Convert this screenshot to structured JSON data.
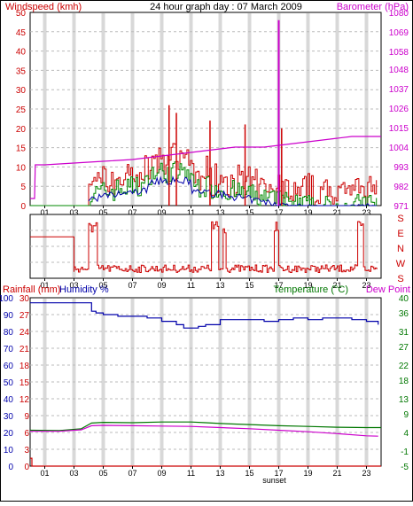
{
  "colors": {
    "windspeed": "#cc0000",
    "gust": "#cc0000",
    "avg": "#0000aa",
    "green": "#008800",
    "barometer": "#cc00cc",
    "humidity": "#0000aa",
    "temperature": "#007700",
    "dewpoint": "#cc00cc",
    "grid_band": "#d8d8d8"
  },
  "chart_data": [
    {
      "type": "line",
      "title": "24 hour graph day : 07 March 2009",
      "left_axis_label": "Windspeed (kmh)",
      "right_axis_label": "Barometer (hPa)",
      "x_ticks": [
        "01",
        "03",
        "05",
        "07",
        "09",
        "11",
        "13",
        "15",
        "17",
        "19",
        "21",
        "23"
      ],
      "annotation": "sunset",
      "left_ticks": [
        0,
        5,
        10,
        15,
        20,
        25,
        30,
        35,
        40,
        45,
        50
      ],
      "right_ticks": [
        971,
        982,
        993,
        1004,
        1015,
        1026,
        1037,
        1048,
        1058,
        1069,
        1080
      ],
      "xlim": [
        0,
        24
      ],
      "ylim_left": [
        0,
        50
      ],
      "ylim_right": [
        971,
        1080
      ],
      "series": [
        {
          "name": "Barometer (hPa)",
          "x": [
            0,
            0.3,
            0.35,
            1,
            3,
            5,
            7,
            9,
            10,
            11,
            12,
            13,
            14,
            15,
            16,
            17,
            18,
            19,
            20,
            21,
            22,
            23,
            24
          ],
          "values": [
            975,
            975,
            994,
            994,
            995,
            996,
            997,
            999,
            1000,
            1001,
            1002,
            1003,
            1004,
            1004,
            1004,
            1005,
            1006,
            1007,
            1008,
            1009,
            1010,
            1010,
            1010
          ]
        }
      ],
      "gust_spikes": [
        {
          "x": 9.5,
          "value": 26
        },
        {
          "x": 10.0,
          "value": 24
        },
        {
          "x": 12.3,
          "value": 22
        },
        {
          "x": 14.7,
          "value": 21
        },
        {
          "x": 17.0,
          "value": 48
        },
        {
          "x": 17.2,
          "value": 20
        }
      ]
    },
    {
      "type": "line",
      "right_axis_labels": [
        "S",
        "E",
        "N",
        "W",
        "S"
      ],
      "x_ticks": [
        "01",
        "03",
        "05",
        "07",
        "09",
        "11",
        "13",
        "15",
        "17",
        "19",
        "21",
        "23"
      ]
    },
    {
      "type": "line",
      "left_axis_label_1": "Rainfall (mm)",
      "left_axis_label_2": "Humidity %",
      "right_axis_label_1": "Temperature (°C)",
      "right_axis_label_2": "Dew Point",
      "x_ticks": [
        "01",
        "03",
        "05",
        "07",
        "09",
        "11",
        "13",
        "15",
        "17",
        "19",
        "21",
        "23"
      ],
      "annotation": "sunset",
      "humidity_ticks": [
        0,
        10,
        20,
        30,
        40,
        50,
        60,
        70,
        80,
        90,
        100
      ],
      "rain_ticks": [
        0,
        3,
        6,
        9,
        12,
        15,
        18,
        21,
        24,
        27,
        30
      ],
      "temp_ticks": [
        -5,
        -1,
        4,
        9,
        13,
        18,
        22,
        27,
        31,
        36,
        40
      ],
      "xlim": [
        0,
        24
      ],
      "ylim_humidity": [
        0,
        100
      ],
      "ylim_temp": [
        -5,
        40
      ],
      "series": [
        {
          "name": "Humidity %",
          "x": [
            0,
            3.8,
            4.2,
            4.5,
            5,
            6,
            7,
            8,
            9,
            10,
            10.5,
            11,
            11.5,
            12,
            13,
            14,
            15,
            16,
            17,
            18,
            19,
            20,
            21,
            22,
            23,
            23.8
          ],
          "values": [
            97,
            97,
            92,
            91,
            90,
            89,
            89,
            88,
            86,
            84,
            82,
            82,
            83,
            84,
            87,
            87,
            87,
            86,
            87,
            88,
            87,
            88,
            88,
            87,
            86,
            84
          ]
        },
        {
          "name": "Temperature (°C)",
          "x": [
            0,
            2,
            3.5,
            4.2,
            5,
            7,
            9,
            11,
            12,
            13,
            15,
            17,
            19,
            21,
            23,
            24
          ],
          "values": [
            4.6,
            4.5,
            5,
            6.5,
            6.7,
            6.6,
            6.8,
            6.8,
            6.6,
            6.4,
            6.1,
            5.8,
            5.6,
            5.4,
            5.3,
            5.3
          ]
        },
        {
          "name": "Dew Point",
          "x": [
            0,
            2,
            3.5,
            4.2,
            5,
            7,
            9,
            11,
            13,
            15,
            17,
            19,
            21,
            23,
            23.8
          ],
          "values": [
            4.3,
            4.3,
            4.7,
            5.8,
            5.9,
            5.8,
            5.7,
            5.6,
            5.3,
            5,
            4.6,
            4.2,
            3.7,
            3.1,
            3
          ]
        },
        {
          "name": "Rainfall (mm)",
          "x": [
            0,
            0.1,
            0.12,
            24
          ],
          "values": [
            1.4,
            1.4,
            0,
            0
          ]
        }
      ]
    }
  ]
}
